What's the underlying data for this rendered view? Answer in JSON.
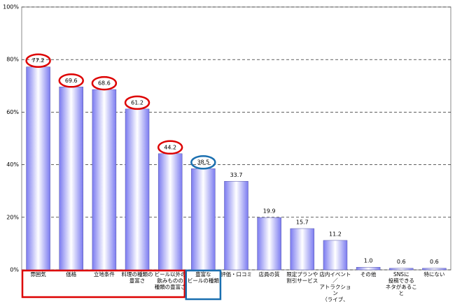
{
  "chart_data": {
    "type": "bar",
    "categories": [
      "雰囲気",
      "価格",
      "立地条件",
      "料理の種類の\n豊富さ",
      "ビール以外の\n飲みものの\n種類の豊富さ",
      "豊富な\nビールの種類",
      "評価・口コミ",
      "店員の質",
      "限定プランや\n割引サービス",
      "店内イベント／\nアトラクション\n（ライブ、\nダンスなど）",
      "その他",
      "SNSに\n投稿できる\nネタがあること",
      "特にない"
    ],
    "values": [
      77.2,
      69.6,
      68.6,
      61.2,
      44.2,
      38.5,
      33.7,
      19.9,
      15.7,
      11.2,
      1.0,
      0.6,
      0.6
    ],
    "value_labels": [
      "77.2",
      "69.6",
      "68.6",
      "61.2",
      "44.2",
      "38.5",
      "33.7",
      "19.9",
      "15.7",
      "11.2",
      "1.0",
      "0.6",
      "0.6"
    ],
    "color": "#7b7bf0",
    "ylim": [
      0,
      100
    ],
    "yticks": [
      {
        "value": 0,
        "label": "0%"
      },
      {
        "value": 20,
        "label": "20%"
      },
      {
        "value": 40,
        "label": "40%"
      },
      {
        "value": 60,
        "label": "60%"
      },
      {
        "value": 80,
        "label": "80%"
      },
      {
        "value": 100,
        "label": "100%"
      }
    ],
    "grid": true
  }
}
